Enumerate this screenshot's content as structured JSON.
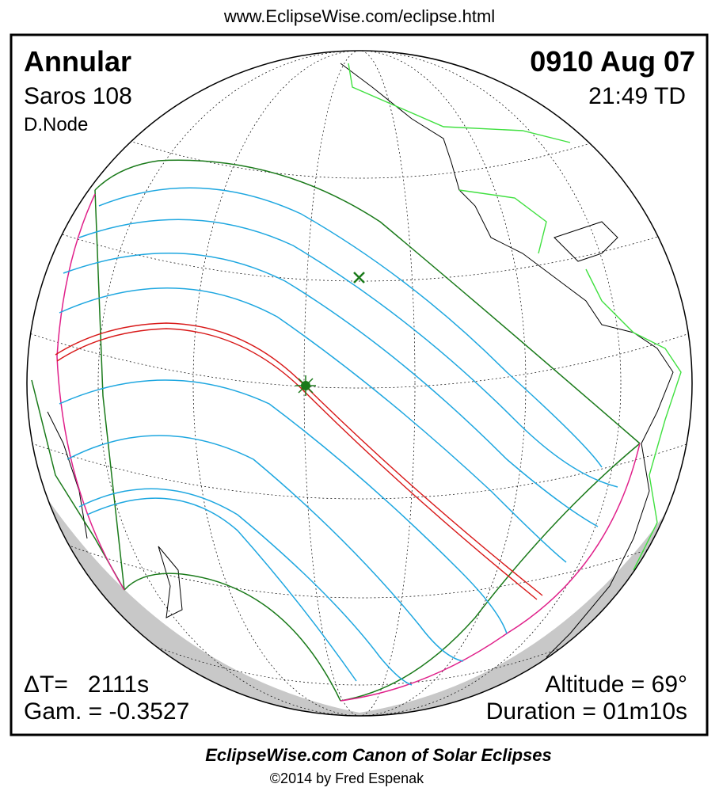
{
  "header": {
    "url": "www.EclipseWise.com/eclipse.html"
  },
  "info": {
    "type": "Annular",
    "saros": "Saros 108",
    "node": "D.Node",
    "date": "0910 Aug 07",
    "time": "21:49 TD",
    "delta_t": "ΔT=   2111s",
    "gamma": "Gam. = -0.3527",
    "altitude": "Altitude = 69°",
    "duration": "Duration = 01m10s"
  },
  "footer": {
    "title": "EclipseWise.com Canon of Solar Eclipses",
    "credit": "©2014 by Fred Espenak"
  }
}
